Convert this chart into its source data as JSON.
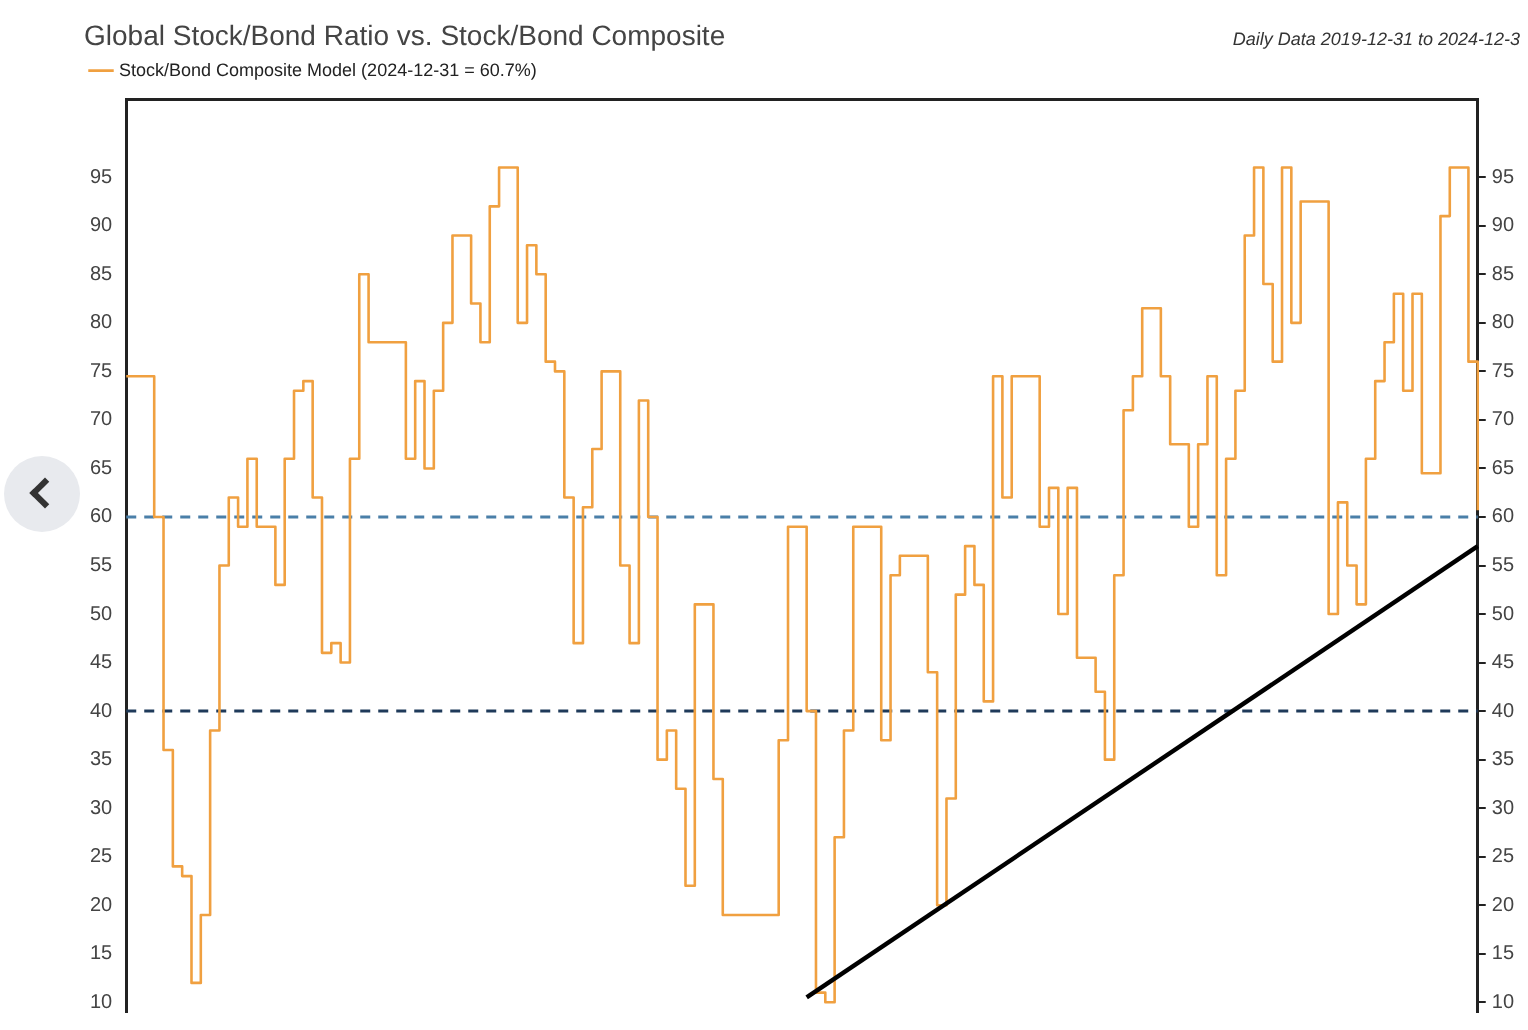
{
  "chart_data": {
    "type": "step",
    "title": "Global Stock/Bond Ratio vs. Stock/Bond Composite",
    "annotations": [
      "Daily Data 2019-12-31 to 2024-12-3"
    ],
    "categories": [
      null,
      null,
      null,
      null,
      null,
      null,
      null,
      null,
      null,
      null,
      null,
      null,
      null,
      null,
      null,
      null,
      null,
      null,
      null,
      null,
      null,
      null,
      null,
      null,
      null,
      null,
      null,
      null,
      null,
      null,
      null,
      null,
      null,
      null,
      null,
      null,
      null,
      null,
      null,
      null,
      null,
      null,
      null,
      null,
      null,
      null,
      null,
      null,
      null,
      null,
      null,
      null,
      null,
      null,
      null,
      null,
      null,
      null,
      null,
      null,
      null,
      null,
      null,
      null,
      null,
      null,
      null,
      null,
      null,
      null,
      null,
      null,
      null,
      null,
      null,
      null,
      null,
      null,
      null,
      null,
      null,
      null,
      null,
      null,
      null,
      null,
      null,
      null,
      null,
      null,
      null,
      null,
      null,
      null,
      null,
      null,
      null,
      null,
      null,
      null,
      null,
      null,
      null,
      null,
      null,
      null,
      null,
      null,
      null,
      null,
      null,
      null,
      null,
      null,
      null,
      null,
      null,
      null,
      null,
      null,
      null,
      null,
      null,
      null,
      null,
      null,
      null,
      null,
      null,
      null,
      null,
      null,
      null,
      null,
      null,
      null,
      null,
      null,
      null,
      null,
      null,
      null,
      null,
      null,
      null,
      null
    ],
    "series": [
      {
        "name": "Stock/Bond Composite Model (2024-12-31 = 60.7%)",
        "type": "step",
        "color": "#f0a040",
        "values": [
          74.5,
          74.5,
          74.5,
          60,
          36,
          24,
          23,
          12,
          19,
          38,
          55,
          62,
          59,
          66,
          59,
          59,
          53,
          66,
          73,
          74,
          62,
          46,
          47,
          45,
          66,
          85,
          78,
          78,
          78,
          78,
          66,
          74,
          65,
          73,
          80,
          89,
          89,
          82,
          78,
          92,
          96,
          96,
          80,
          88,
          85,
          76,
          75,
          62,
          47,
          61,
          67,
          75,
          75,
          55,
          47,
          72,
          60,
          35,
          38,
          32,
          22,
          51,
          51,
          33,
          19,
          19,
          19,
          19,
          19,
          19,
          37,
          59,
          59,
          40,
          11,
          10,
          27,
          38,
          59,
          59,
          59,
          37,
          54,
          56,
          56,
          56,
          44,
          20,
          31,
          52,
          57,
          53,
          41,
          74.5,
          62,
          74.5,
          74.5,
          74.5,
          59,
          63,
          50,
          63,
          45.5,
          45.5,
          42,
          35,
          54,
          71,
          74.5,
          81.5,
          81.5,
          74.5,
          67.5,
          67.5,
          59,
          67.5,
          74.5,
          54,
          66,
          73,
          89,
          96,
          84,
          76,
          96,
          80,
          92.5,
          92.5,
          92.5,
          50,
          61.5,
          55,
          51,
          66,
          74,
          78,
          83,
          73,
          83,
          64.5,
          64.5,
          91,
          96,
          96,
          76,
          60.7
        ]
      },
      {
        "type": "line",
        "color": "#000000",
        "values": [
          null,
          null,
          null,
          null,
          null,
          null,
          null,
          null,
          null,
          null,
          null,
          null,
          null,
          null,
          null,
          null,
          null,
          null,
          null,
          null,
          null,
          null,
          null,
          null,
          null,
          null,
          null,
          null,
          null,
          null,
          null,
          null,
          null,
          null,
          null,
          null,
          null,
          null,
          null,
          null,
          null,
          null,
          null,
          null,
          null,
          null,
          null,
          null,
          null,
          null,
          null,
          null,
          null,
          null,
          null,
          null,
          null,
          null,
          null,
          null,
          null,
          null,
          null,
          null,
          null,
          null,
          null,
          null,
          null,
          null,
          null,
          null,
          null,
          10.5,
          null,
          null,
          null,
          null,
          null,
          null,
          null,
          null,
          null,
          null,
          null,
          null,
          null,
          null,
          null,
          null,
          null,
          null,
          null,
          null,
          null,
          null,
          null,
          null,
          null,
          null,
          null,
          null,
          null,
          null,
          null,
          null,
          null,
          null,
          null,
          null,
          null,
          null,
          null,
          null,
          null,
          null,
          null,
          null,
          null,
          null,
          null,
          null,
          null,
          null,
          null,
          null,
          null,
          null,
          null,
          null,
          null,
          null,
          null,
          null,
          null,
          null,
          null,
          null,
          null,
          null,
          null,
          null,
          null,
          null,
          null,
          57
        ]
      }
    ],
    "ylim": [
      9,
      103
    ],
    "yticks": [
      10,
      15,
      20,
      25,
      30,
      35,
      40,
      45,
      50,
      55,
      60,
      65,
      70,
      75,
      80,
      85,
      90,
      95
    ],
    "y2lim": [
      9,
      103
    ],
    "y2ticks": [
      10,
      15,
      20,
      25,
      30,
      35,
      40,
      45,
      50,
      55,
      60,
      65,
      70,
      75,
      80,
      85,
      90,
      95
    ],
    "ref_lines": [
      {
        "axis": "y",
        "value": 60,
        "color": "#4a7fa8",
        "line_style": "dashed"
      },
      {
        "axis": "y",
        "value": 40,
        "color": "#1f3a5a",
        "line_style": "dashed"
      }
    ],
    "legend": "top left",
    "tick_labels": "y"
  }
}
